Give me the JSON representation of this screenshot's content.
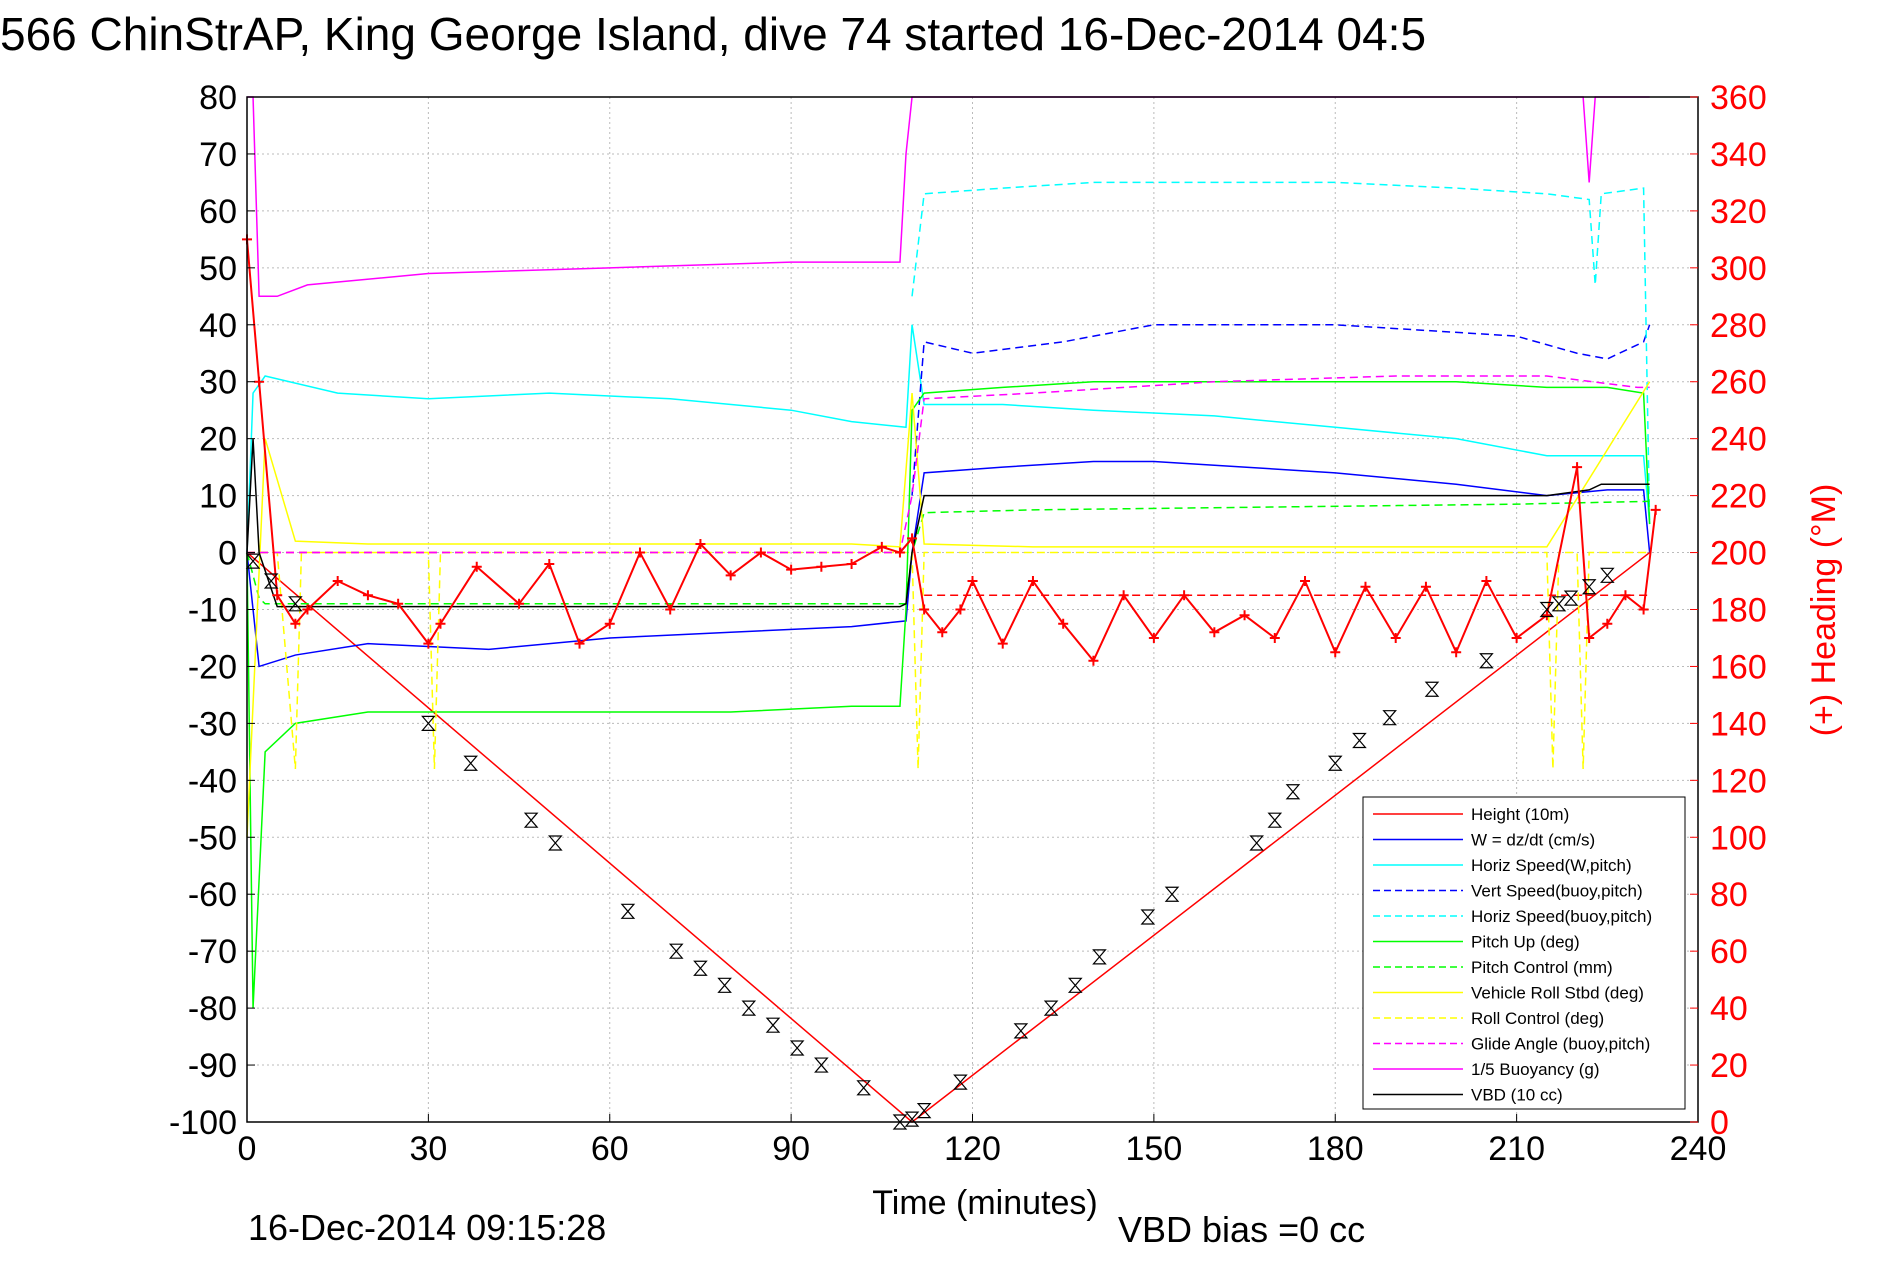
{
  "chart_data": {
    "type": "line",
    "title": "566 ChinStrAP, King George Island, dive 74 started 16-Dec-2014 04:5",
    "xlabel": "Time (minutes)",
    "ylabel": "",
    "y2label": "(+) Heading (°M)",
    "xlim": [
      0,
      240
    ],
    "ylim": [
      -100,
      80
    ],
    "y2lim": [
      0,
      360
    ],
    "xticks": [
      "0",
      "30",
      "60",
      "90",
      "120",
      "150",
      "180",
      "210",
      "240"
    ],
    "yticks": [
      "80",
      "70",
      "60",
      "50",
      "40",
      "30",
      "20",
      "10",
      "0",
      "-10",
      "-20",
      "-30",
      "-40",
      "-50",
      "-60",
      "-70",
      "-80",
      "-90",
      "-100"
    ],
    "y2ticks": [
      "360",
      "340",
      "320",
      "300",
      "280",
      "260",
      "240",
      "220",
      "200",
      "180",
      "160",
      "140",
      "120",
      "100",
      "80",
      "60",
      "40",
      "20",
      "0"
    ],
    "grid": true,
    "legend_position": "bottom-right",
    "footer_left": "16-Dec-2014 09:15:28",
    "footer_right": "VBD bias =0 cc",
    "colors": {
      "red": "#ff0000",
      "blue": "#0000ff",
      "cyan": "#00ffff",
      "green": "#00ff00",
      "yellow": "#ffff00",
      "magenta": "#ff00ff",
      "black": "#000000"
    },
    "series": [
      {
        "name": "Height (10m)",
        "color": "#ff0000",
        "dash": false,
        "x": [
          0,
          110,
          232
        ],
        "y": [
          0,
          -100,
          0
        ]
      },
      {
        "name": "W = dz/dt (cm/s)",
        "color": "#0000ff",
        "dash": false,
        "x": [
          0,
          1,
          2,
          8,
          20,
          40,
          60,
          80,
          100,
          109,
          110,
          112,
          125,
          140,
          150,
          165,
          180,
          200,
          215,
          225,
          231,
          232
        ],
        "y": [
          0,
          -10,
          -20,
          -18,
          -16,
          -17,
          -15,
          -14,
          -13,
          -12,
          0,
          14,
          15,
          16,
          16,
          15,
          14,
          12,
          10,
          11,
          11,
          0
        ]
      },
      {
        "name": "Horiz Speed(W,pitch)",
        "color": "#00ffff",
        "dash": false,
        "x": [
          0,
          1,
          3,
          15,
          30,
          50,
          70,
          90,
          100,
          109,
          110,
          112,
          125,
          140,
          160,
          180,
          200,
          215,
          225,
          231,
          232
        ],
        "y": [
          0,
          28,
          31,
          28,
          27,
          28,
          27,
          25,
          23,
          22,
          40,
          26,
          26,
          25,
          24,
          22,
          20,
          17,
          17,
          17,
          5
        ]
      },
      {
        "name": "Vert Speed(buoy,pitch)",
        "color": "#0000ff",
        "dash": true,
        "x": [
          110,
          112,
          120,
          135,
          150,
          165,
          180,
          195,
          210,
          220,
          225,
          231,
          232
        ],
        "y": [
          10,
          37,
          35,
          37,
          40,
          40,
          40,
          39,
          38,
          35,
          34,
          37,
          40
        ]
      },
      {
        "name": "Horiz Speed(buoy,pitch)",
        "color": "#00ffff",
        "dash": true,
        "x": [
          110,
          112,
          125,
          140,
          150,
          165,
          180,
          200,
          215,
          222,
          223,
          224,
          231,
          232
        ],
        "y": [
          45,
          63,
          64,
          65,
          65,
          65,
          65,
          64,
          63,
          62,
          47,
          63,
          64,
          5
        ]
      },
      {
        "name": "Pitch Up (deg)",
        "color": "#00ff00",
        "dash": false,
        "x": [
          0,
          1,
          3,
          8,
          20,
          40,
          60,
          80,
          100,
          108,
          109,
          110,
          112,
          125,
          140,
          160,
          180,
          200,
          215,
          225,
          231,
          232
        ],
        "y": [
          0,
          -80,
          -35,
          -30,
          -28,
          -28,
          -28,
          -28,
          -27,
          -27,
          -10,
          25,
          28,
          29,
          30,
          30,
          30,
          30,
          29,
          29,
          28,
          5
        ]
      },
      {
        "name": "Pitch Control (mm)",
        "color": "#00ff00",
        "dash": true,
        "x": [
          0,
          2,
          3,
          108,
          109,
          110,
          112,
          130,
          170,
          210,
          232
        ],
        "y": [
          0,
          -8,
          -9,
          -9,
          -9,
          0,
          7,
          7.5,
          8,
          8.5,
          9
        ]
      },
      {
        "name": "Vehicle Roll Stbd (deg)",
        "color": "#ffff00",
        "dash": false,
        "x": [
          0,
          3,
          8,
          20,
          40,
          60,
          80,
          100,
          108,
          110,
          112,
          130,
          160,
          190,
          215,
          232
        ],
        "y": [
          -50,
          20,
          2,
          1.5,
          1.5,
          1.5,
          1.5,
          1.5,
          1,
          28,
          1.5,
          1,
          1,
          1,
          1,
          30
        ]
      },
      {
        "name": "Roll Control (deg)",
        "color": "#ffff00",
        "dash": true,
        "x": [
          0,
          5,
          8,
          9,
          10,
          30,
          31,
          32,
          108,
          110,
          111,
          112,
          215,
          216,
          217,
          220,
          221,
          222,
          232
        ],
        "y": [
          0,
          0,
          -38,
          0,
          0,
          0,
          -38,
          0,
          0,
          0,
          -38,
          0,
          0,
          -38,
          0,
          0,
          -38,
          0,
          0
        ]
      },
      {
        "name": "Glide Angle (buoy,pitch)",
        "color": "#ff00ff",
        "dash": true,
        "x": [
          0,
          108,
          110,
          112,
          130,
          160,
          190,
          215,
          230,
          232
        ],
        "y": [
          0,
          0,
          10,
          27,
          28,
          30,
          31,
          31,
          29,
          29
        ]
      },
      {
        "name": "1/5 Buoyancy (g)",
        "color": "#ff00ff",
        "dash": false,
        "x": [
          0,
          1,
          2,
          5,
          10,
          30,
          60,
          90,
          105,
          108,
          109,
          110,
          112,
          221,
          222,
          223,
          225,
          232
        ],
        "y": [
          80,
          80,
          45,
          45,
          47,
          49,
          50,
          51,
          51,
          51,
          70,
          80,
          80,
          80,
          65,
          80,
          80,
          80
        ]
      },
      {
        "name": "VBD (10 cc)",
        "color": "#000000",
        "dash": false,
        "x": [
          0,
          1,
          2,
          5,
          108,
          109,
          110,
          112,
          150,
          215,
          222,
          224,
          230,
          232
        ],
        "y": [
          0,
          20,
          0,
          -9.5,
          -9.5,
          -9,
          0,
          10,
          10,
          10,
          11,
          12,
          12,
          12
        ]
      },
      {
        "name": "Heading",
        "color": "#ff0000",
        "dash": false,
        "marker": "+",
        "axis": "right",
        "x": [
          0,
          2,
          5,
          8,
          10,
          15,
          20,
          25,
          30,
          32,
          38,
          45,
          50,
          55,
          60,
          65,
          70,
          75,
          80,
          85,
          90,
          95,
          100,
          105,
          108,
          110,
          112,
          115,
          118,
          120,
          125,
          130,
          135,
          140,
          145,
          150,
          155,
          160,
          165,
          170,
          175,
          180,
          185,
          190,
          195,
          200,
          205,
          210,
          215,
          220,
          222,
          225,
          228,
          231,
          233
        ],
        "y": [
          310,
          260,
          185,
          175,
          180,
          190,
          185,
          182,
          168,
          175,
          195,
          182,
          196,
          168,
          175,
          200,
          180,
          203,
          192,
          200,
          194,
          195,
          196,
          202,
          200,
          205,
          180,
          172,
          180,
          190,
          168,
          190,
          175,
          162,
          185,
          170,
          185,
          172,
          178,
          170,
          190,
          165,
          188,
          170,
          188,
          165,
          190,
          170,
          178,
          230,
          170,
          175,
          185,
          180,
          215
        ]
      }
    ],
    "reference_lines": [
      {
        "color": "#ff0000",
        "dash": true,
        "axis": "right",
        "x": [
          0,
          108
        ],
        "y": [
          200,
          200
        ]
      },
      {
        "color": "#ff0000",
        "dash": true,
        "axis": "right",
        "x": [
          112,
          232
        ],
        "y": [
          185,
          185
        ]
      }
    ],
    "marker_points": {
      "x": [
        1,
        4,
        8,
        30,
        37,
        47,
        51,
        63,
        71,
        75,
        79,
        83,
        87,
        91,
        95,
        102,
        108,
        110,
        112,
        118,
        128,
        133,
        137,
        141,
        149,
        153,
        167,
        170,
        173,
        180,
        184,
        189,
        196,
        205,
        215,
        217,
        219,
        222,
        225
      ],
      "y": [
        -1.5,
        -5,
        -9,
        -30,
        -37,
        -47,
        -51,
        -63,
        -70,
        -73,
        -76,
        -80,
        -83,
        -87,
        -90,
        -94,
        -100,
        -99.5,
        -98,
        -93,
        -84,
        -80,
        -76,
        -71,
        -64,
        -60,
        -51,
        -47,
        -42,
        -37,
        -33,
        -29,
        -24,
        -19,
        -10,
        -9,
        -8,
        -6,
        -4
      ]
    }
  }
}
